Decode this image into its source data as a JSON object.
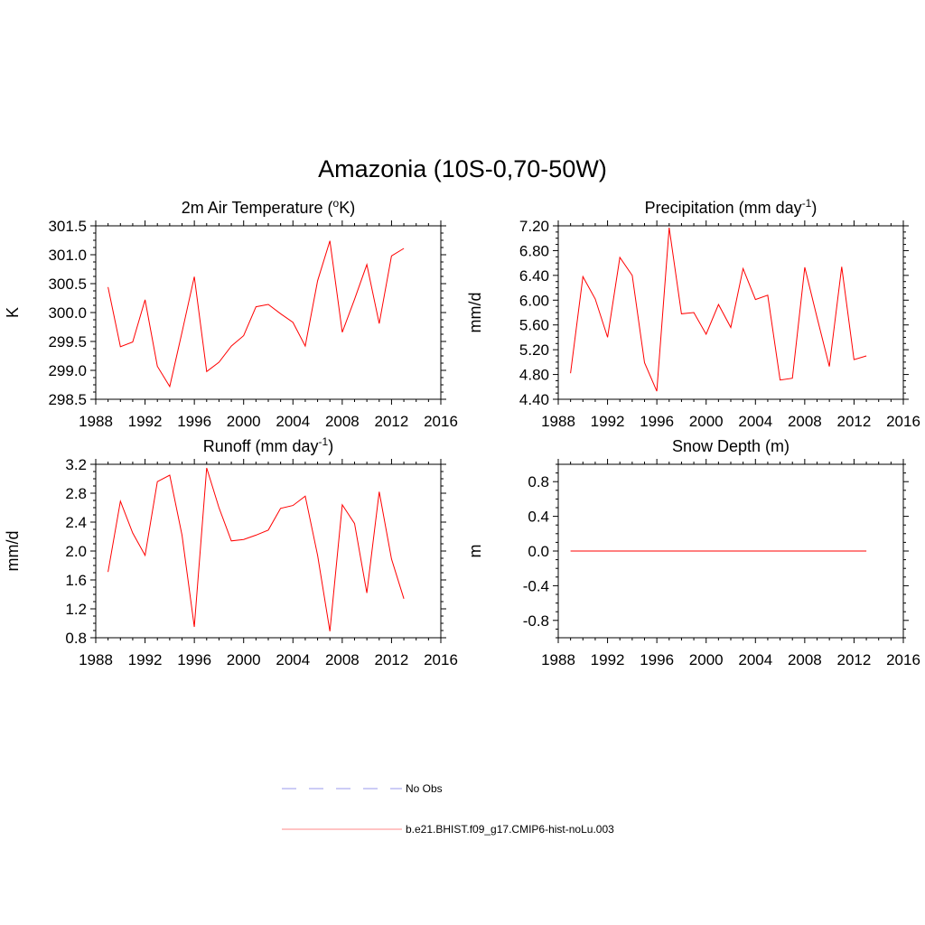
{
  "figure_title": "Amazonia (10S-0,70-50W)",
  "legend": [
    {
      "label": "No Obs",
      "color": "#9999ee",
      "style": "dashed"
    },
    {
      "label": "b.e21.BHIST.f09_g17.CMIP6-hist-noLu.003",
      "color": "#ff8888",
      "style": "solid"
    }
  ],
  "chart_data": [
    {
      "type": "line",
      "title": "2m Air Temperature (",
      "title_sup": "o",
      "title_after": "K)",
      "title_sup2": "",
      "title_end": "",
      "xlabel": "",
      "ylabel": "K",
      "xlim": [
        1988,
        2016
      ],
      "ylim": [
        298.5,
        301.5
      ],
      "xticks": [
        1988,
        1992,
        1996,
        2000,
        2004,
        2008,
        2012,
        2016
      ],
      "yticks": [
        "298.5",
        "299.0",
        "299.5",
        "300.0",
        "300.5",
        "301.0",
        "301.5"
      ],
      "x": [
        1989,
        1990,
        1991,
        1992,
        1993,
        1994,
        1995,
        1996,
        1997,
        1998,
        1999,
        2000,
        2001,
        2002,
        2003,
        2004,
        2005,
        2006,
        2007,
        2008,
        2009,
        2010,
        2011,
        2012,
        2013
      ],
      "series": [
        {
          "color": "#ff0000",
          "values": [
            300.44,
            299.41,
            299.49,
            300.22,
            299.07,
            298.72,
            299.66,
            300.62,
            298.98,
            299.14,
            299.42,
            299.6,
            300.1,
            300.14,
            299.98,
            299.83,
            299.42,
            300.55,
            301.24,
            299.66,
            300.23,
            300.83,
            299.81,
            300.98,
            301.11
          ]
        }
      ]
    },
    {
      "type": "line",
      "title": "Precipitation (mm day",
      "title_sup": "-1",
      "title_after": ")",
      "title_sup2": "",
      "title_end": "",
      "xlabel": "",
      "ylabel": "mm/d",
      "xlim": [
        1988,
        2016
      ],
      "ylim": [
        4.4,
        7.2
      ],
      "xticks": [
        1988,
        1992,
        1996,
        2000,
        2004,
        2008,
        2012,
        2016
      ],
      "yticks": [
        "4.40",
        "4.80",
        "5.20",
        "5.60",
        "6.00",
        "6.40",
        "6.80",
        "7.20"
      ],
      "x": [
        1989,
        1990,
        1991,
        1992,
        1993,
        1994,
        1995,
        1996,
        1997,
        1998,
        1999,
        2000,
        2001,
        2002,
        2003,
        2004,
        2005,
        2006,
        2007,
        2008,
        2009,
        2010,
        2011,
        2012,
        2013
      ],
      "series": [
        {
          "color": "#ff0000",
          "values": [
            4.82,
            6.38,
            6.02,
            5.4,
            6.69,
            6.4,
            4.99,
            4.53,
            7.17,
            5.78,
            5.8,
            5.45,
            5.93,
            5.56,
            6.51,
            6.01,
            6.08,
            4.71,
            4.74,
            6.53,
            5.72,
            4.93,
            6.54,
            5.04,
            5.1
          ]
        }
      ]
    },
    {
      "type": "line",
      "title": "Runoff (mm day",
      "title_sup": "-1",
      "title_after": ")",
      "title_sup2": "",
      "title_end": "",
      "xlabel": "",
      "ylabel": "mm/d",
      "xlim": [
        1988,
        2016
      ],
      "ylim": [
        0.8,
        3.2
      ],
      "xticks": [
        1988,
        1992,
        1996,
        2000,
        2004,
        2008,
        2012,
        2016
      ],
      "yticks": [
        "0.8",
        "1.2",
        "1.6",
        "2.0",
        "2.4",
        "2.8",
        "3.2"
      ],
      "x": [
        1989,
        1990,
        1991,
        1992,
        1993,
        1994,
        1995,
        1996,
        1997,
        1998,
        1999,
        2000,
        2001,
        2002,
        2003,
        2004,
        2005,
        2006,
        2007,
        2008,
        2009,
        2010,
        2011,
        2012,
        2013
      ],
      "series": [
        {
          "color": "#ff0000",
          "values": [
            1.71,
            2.69,
            2.25,
            1.94,
            2.96,
            3.05,
            2.22,
            0.95,
            3.15,
            2.6,
            2.14,
            2.16,
            2.22,
            2.29,
            2.59,
            2.63,
            2.76,
            1.94,
            0.89,
            2.64,
            2.38,
            1.42,
            2.82,
            1.89,
            1.34
          ]
        }
      ]
    },
    {
      "type": "line",
      "title": "Snow Depth (m)",
      "title_sup": "",
      "title_after": "",
      "title_sup2": "",
      "title_end": "",
      "xlabel": "",
      "ylabel": "m",
      "xlim": [
        1988,
        2016
      ],
      "ylim": [
        -1.0,
        1.0
      ],
      "xticks": [
        1988,
        1992,
        1996,
        2000,
        2004,
        2008,
        2012,
        2016
      ],
      "yticks_values": [
        -0.8,
        -0.4,
        0.0,
        0.4,
        0.8
      ],
      "yticks": [
        "-0.8",
        "-0.4",
        "0.0",
        "0.4",
        "0.8"
      ],
      "x": [
        1989,
        1990,
        1991,
        1992,
        1993,
        1994,
        1995,
        1996,
        1997,
        1998,
        1999,
        2000,
        2001,
        2002,
        2003,
        2004,
        2005,
        2006,
        2007,
        2008,
        2009,
        2010,
        2011,
        2012,
        2013
      ],
      "series": [
        {
          "color": "#ff0000",
          "values": [
            0,
            0,
            0,
            0,
            0,
            0,
            0,
            0,
            0,
            0,
            0,
            0,
            0,
            0,
            0,
            0,
            0,
            0,
            0,
            0,
            0,
            0,
            0,
            0,
            0
          ]
        }
      ]
    }
  ]
}
